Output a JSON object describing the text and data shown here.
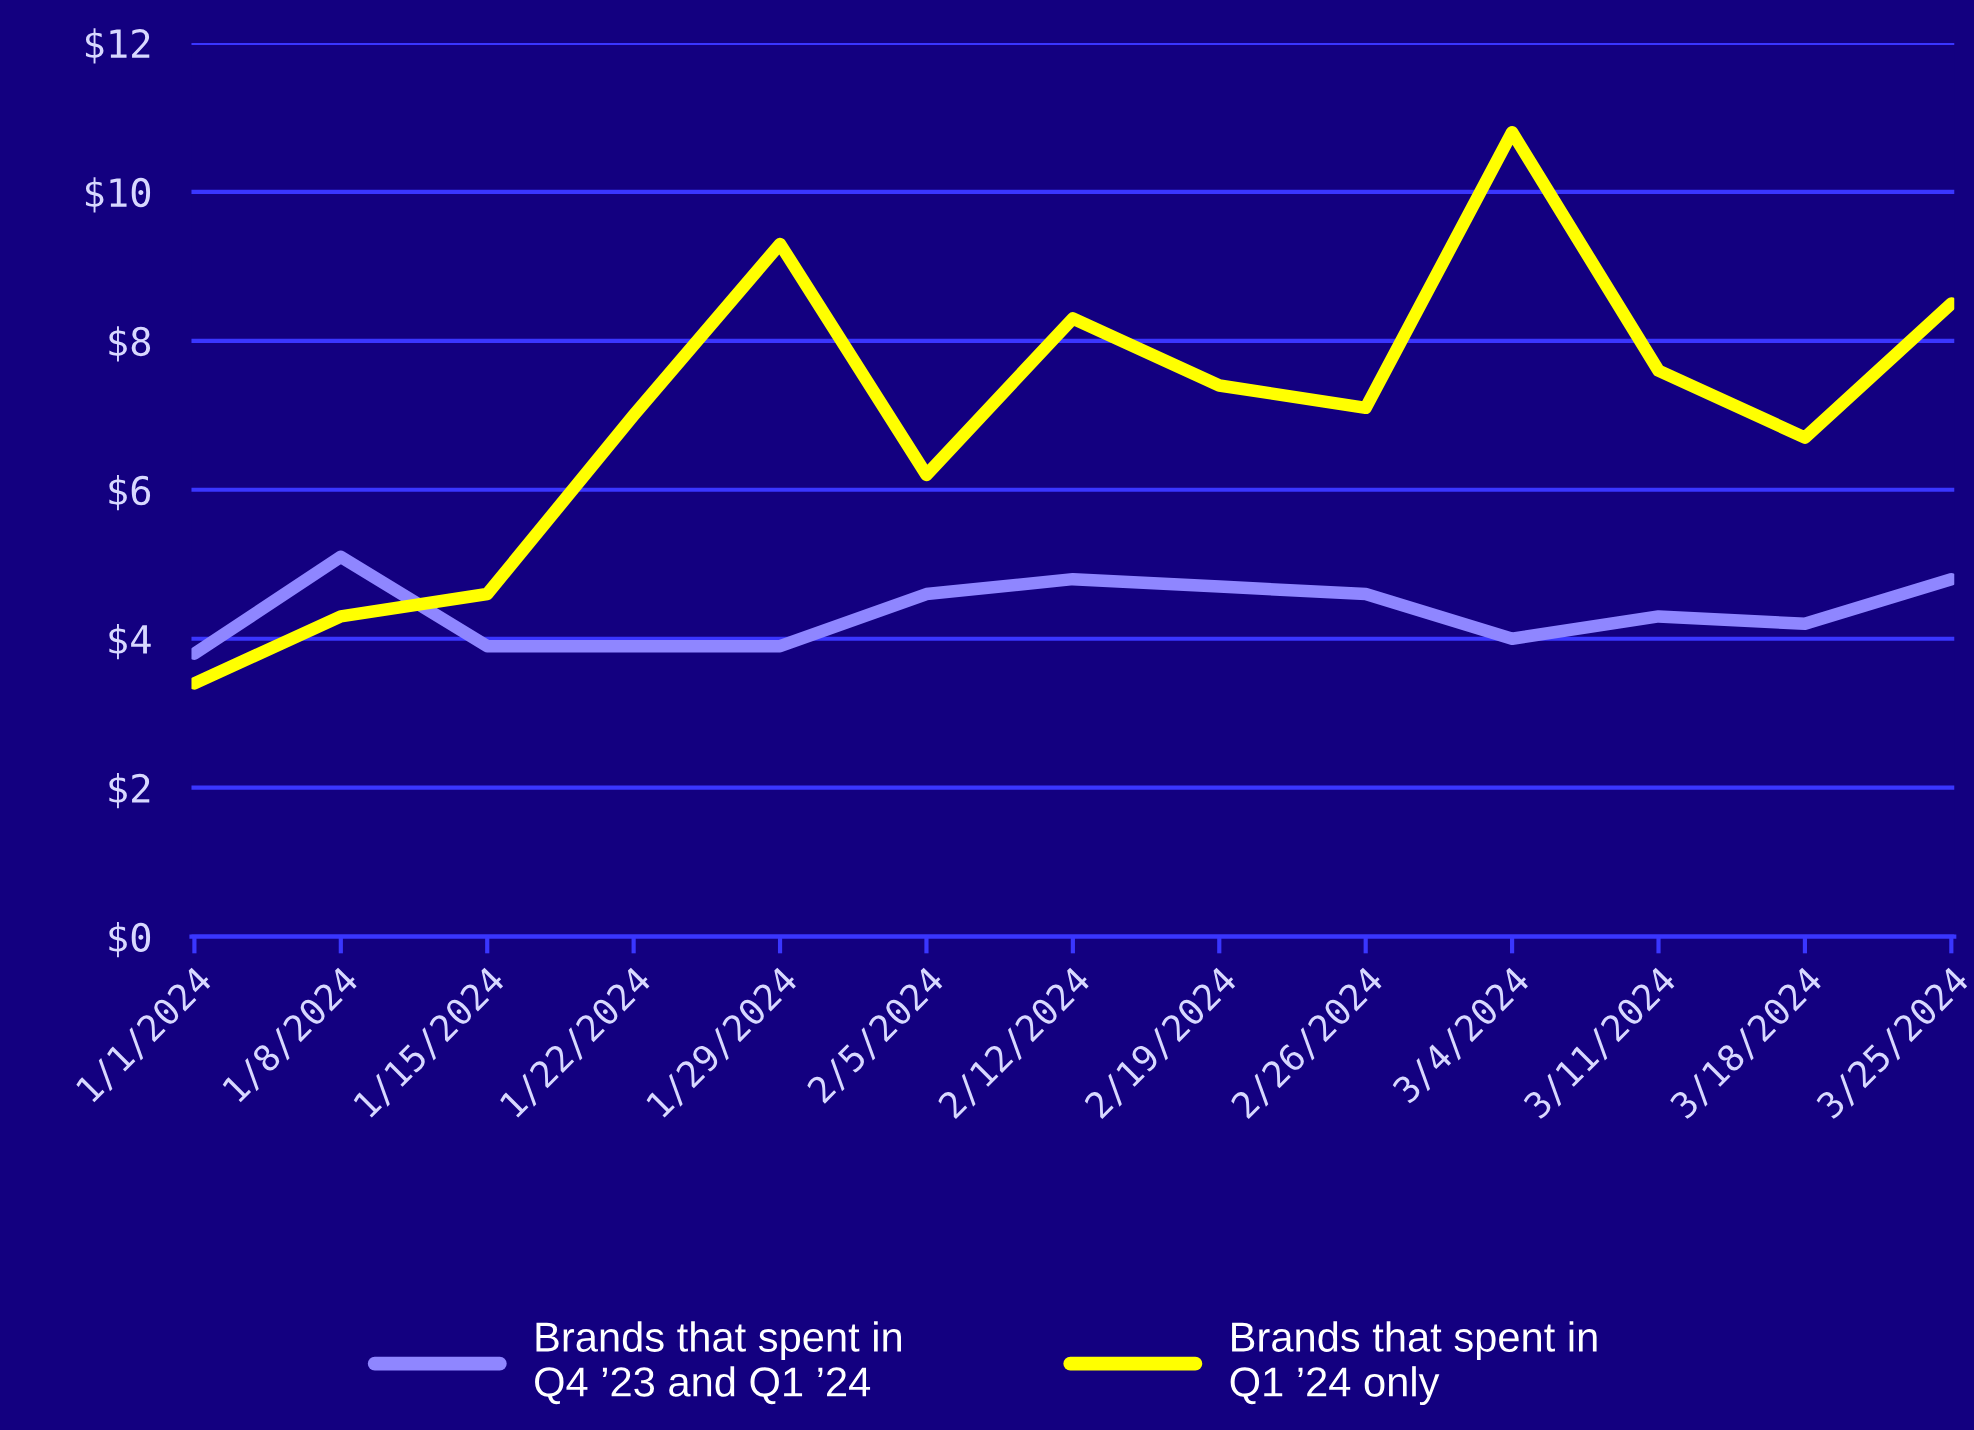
{
  "chart_data": {
    "type": "line",
    "categories": [
      "1/1/2024",
      "1/8/2024",
      "1/15/2024",
      "1/22/2024",
      "1/29/2024",
      "2/5/2024",
      "2/12/2024",
      "2/19/2024",
      "2/26/2024",
      "3/4/2024",
      "3/11/2024",
      "3/18/2024",
      "3/25/2024"
    ],
    "series": [
      {
        "name": "Brands that spent in\nQ4 ’23 and Q1 ’24",
        "color": "#8f86ff",
        "values": [
          3.8,
          5.1,
          3.9,
          3.9,
          3.9,
          4.6,
          4.8,
          4.7,
          4.6,
          4.0,
          4.3,
          4.2,
          4.8
        ]
      },
      {
        "name": "Brands that spent in\nQ1 ’24 only",
        "color": "#ffff00",
        "values": [
          3.4,
          4.3,
          4.6,
          7.0,
          9.3,
          6.2,
          8.3,
          7.4,
          7.1,
          10.8,
          7.6,
          6.7,
          8.5
        ]
      }
    ],
    "ylim": [
      0,
      12
    ],
    "yticks": [
      {
        "value": 0,
        "label": "$0"
      },
      {
        "value": 2,
        "label": "$2"
      },
      {
        "value": 4,
        "label": "$4"
      },
      {
        "value": 6,
        "label": "$6"
      },
      {
        "value": 8,
        "label": "$8"
      },
      {
        "value": 10,
        "label": "$10"
      },
      {
        "value": 12,
        "label": "$12"
      }
    ],
    "grid": "y",
    "legend": "bottom"
  }
}
